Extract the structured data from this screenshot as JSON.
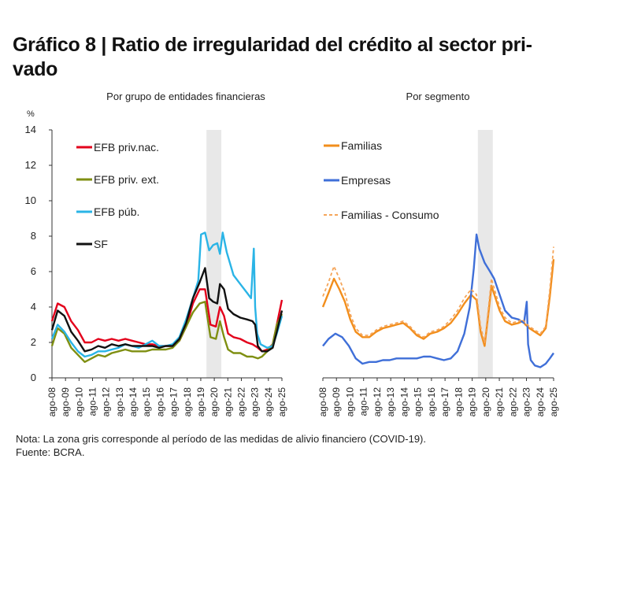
{
  "title": "Gráfico 8 | Ratio de irregularidad del crédito al sector pri-vado",
  "title_line1": "Gráfico 8 | Ratio de irregularidad del crédito al sector pri-",
  "title_line2": "vado",
  "note": "Nota: La zona gris corresponde al período de las medidas de alivio financiero (COVID-19).",
  "source": "Fuente: BCRA.",
  "chart_data": [
    {
      "type": "line",
      "title": "Por grupo de entidades financieras",
      "ylabel": "%",
      "ylim": [
        0,
        14
      ],
      "yticks": [
        0,
        2,
        4,
        6,
        8,
        10,
        12,
        14
      ],
      "xlim": [
        2008.58,
        2025.58
      ],
      "xtick_labels": [
        "ago-08",
        "ago-09",
        "ago-10",
        "ago-11",
        "ago-12",
        "ago-13",
        "ago-14",
        "ago-15",
        "ago-16",
        "ago-17",
        "ago-18",
        "ago-19",
        "ago-20",
        "ago-21",
        "ago-22",
        "ago-23",
        "ago-24",
        "ago-25"
      ],
      "shaded_region": [
        2020.0,
        2021.1
      ],
      "legend_position": "top-left",
      "series": [
        {
          "name": "EFB priv.nac.",
          "color": "#e3001b",
          "x": [
            2008.58,
            2009.0,
            2009.5,
            2010.0,
            2010.5,
            2011.0,
            2011.5,
            2012.0,
            2012.5,
            2013.0,
            2013.5,
            2014.0,
            2014.5,
            2015.0,
            2015.5,
            2016.0,
            2016.5,
            2017.0,
            2017.5,
            2018.0,
            2018.5,
            2019.0,
            2019.5,
            2019.9,
            2020.3,
            2020.7,
            2021.0,
            2021.3,
            2021.6,
            2022.0,
            2022.5,
            2023.0,
            2023.4,
            2023.8,
            2024.1,
            2024.5,
            2024.9,
            2025.2,
            2025.58
          ],
          "y": [
            3.2,
            4.2,
            4.0,
            3.2,
            2.7,
            2.0,
            2.0,
            2.2,
            2.1,
            2.2,
            2.1,
            2.2,
            2.1,
            2.0,
            1.9,
            1.9,
            1.8,
            1.8,
            1.8,
            2.1,
            2.9,
            4.2,
            5.0,
            5.0,
            3.0,
            2.9,
            4.0,
            3.5,
            2.5,
            2.3,
            2.2,
            2.0,
            1.9,
            1.7,
            1.5,
            1.6,
            1.9,
            3.0,
            4.4
          ]
        },
        {
          "name": "EFB priv. ext.",
          "color": "#7f8f12",
          "x": [
            2008.58,
            2009.0,
            2009.5,
            2010.0,
            2010.5,
            2011.0,
            2011.5,
            2012.0,
            2012.5,
            2013.0,
            2013.5,
            2014.0,
            2014.5,
            2015.0,
            2015.5,
            2016.0,
            2016.5,
            2017.0,
            2017.5,
            2018.0,
            2018.5,
            2019.0,
            2019.5,
            2019.9,
            2020.3,
            2020.7,
            2021.0,
            2021.3,
            2021.6,
            2022.0,
            2022.5,
            2023.0,
            2023.4,
            2023.8,
            2024.1,
            2024.5,
            2024.9,
            2025.2,
            2025.58
          ],
          "y": [
            1.8,
            2.8,
            2.5,
            1.7,
            1.3,
            0.9,
            1.1,
            1.3,
            1.2,
            1.4,
            1.5,
            1.6,
            1.5,
            1.5,
            1.5,
            1.6,
            1.6,
            1.6,
            1.7,
            2.1,
            2.9,
            3.7,
            4.2,
            4.3,
            2.3,
            2.2,
            3.2,
            2.3,
            1.6,
            1.4,
            1.4,
            1.2,
            1.2,
            1.1,
            1.2,
            1.5,
            1.9,
            3.0,
            3.6
          ]
        },
        {
          "name": "EFB púb.",
          "color": "#2ab4e6",
          "x": [
            2008.58,
            2009.0,
            2009.5,
            2010.0,
            2010.5,
            2011.0,
            2011.5,
            2012.0,
            2012.5,
            2013.0,
            2013.5,
            2014.0,
            2014.5,
            2015.0,
            2015.5,
            2016.0,
            2016.5,
            2017.0,
            2017.5,
            2018.0,
            2018.5,
            2019.0,
            2019.4,
            2019.6,
            2019.9,
            2020.2,
            2020.5,
            2020.8,
            2021.0,
            2021.2,
            2021.5,
            2022.0,
            2022.5,
            2023.0,
            2023.3,
            2023.5,
            2023.6,
            2023.75,
            2024.0,
            2024.5,
            2024.9,
            2025.2,
            2025.58
          ],
          "y": [
            2.2,
            3.0,
            2.6,
            2.0,
            1.5,
            1.2,
            1.3,
            1.5,
            1.5,
            1.6,
            1.7,
            1.9,
            1.8,
            1.7,
            1.9,
            2.1,
            1.8,
            1.8,
            1.9,
            2.3,
            3.3,
            4.5,
            5.5,
            8.1,
            8.2,
            7.2,
            7.5,
            7.6,
            7.0,
            8.2,
            7.1,
            5.8,
            5.3,
            4.8,
            4.5,
            7.3,
            4.0,
            2.5,
            1.9,
            1.7,
            1.8,
            2.5,
            3.5
          ]
        },
        {
          "name": "SF",
          "color": "#111111",
          "x": [
            2008.58,
            2009.0,
            2009.5,
            2010.0,
            2010.5,
            2011.0,
            2011.5,
            2012.0,
            2012.5,
            2013.0,
            2013.5,
            2014.0,
            2014.5,
            2015.0,
            2015.5,
            2016.0,
            2016.5,
            2017.0,
            2017.5,
            2018.0,
            2018.5,
            2019.0,
            2019.5,
            2019.9,
            2020.2,
            2020.5,
            2020.8,
            2021.0,
            2021.3,
            2021.6,
            2022.0,
            2022.5,
            2023.0,
            2023.4,
            2023.6,
            2023.8,
            2024.1,
            2024.5,
            2024.9,
            2025.2,
            2025.58
          ],
          "y": [
            2.7,
            3.8,
            3.5,
            2.6,
            2.1,
            1.5,
            1.6,
            1.8,
            1.7,
            1.9,
            1.8,
            1.9,
            1.8,
            1.8,
            1.8,
            1.8,
            1.7,
            1.8,
            1.8,
            2.2,
            3.1,
            4.5,
            5.4,
            6.2,
            4.5,
            4.3,
            4.2,
            5.3,
            5.0,
            3.9,
            3.6,
            3.4,
            3.3,
            3.2,
            3.0,
            1.8,
            1.5,
            1.5,
            1.7,
            2.6,
            3.8
          ]
        }
      ]
    },
    {
      "type": "line",
      "title": "Por segmento",
      "ylim": [
        0,
        14
      ],
      "xlim": [
        2008.58,
        2025.58
      ],
      "xtick_labels": [
        "ago-08",
        "ago-09",
        "ago-10",
        "ago-11",
        "ago-12",
        "ago-13",
        "ago-14",
        "ago-15",
        "ago-16",
        "ago-17",
        "ago-18",
        "ago-19",
        "ago-20",
        "ago-21",
        "ago-22",
        "ago-23",
        "ago-24",
        "ago-25"
      ],
      "shaded_region": [
        2020.0,
        2021.1
      ],
      "legend_position": "top-left",
      "series": [
        {
          "name": "Familias",
          "color": "#f28e1c",
          "style": "solid",
          "x": [
            2008.58,
            2009.0,
            2009.4,
            2009.8,
            2010.2,
            2010.6,
            2011.0,
            2011.5,
            2012.0,
            2012.5,
            2013.0,
            2013.5,
            2014.0,
            2014.5,
            2015.0,
            2015.5,
            2016.0,
            2016.5,
            2017.0,
            2017.5,
            2018.0,
            2018.5,
            2019.0,
            2019.5,
            2019.9,
            2020.2,
            2020.5,
            2020.8,
            2021.0,
            2021.3,
            2021.6,
            2022.0,
            2022.5,
            2023.0,
            2023.3,
            2023.5,
            2023.8,
            2024.2,
            2024.6,
            2025.0,
            2025.3,
            2025.58
          ],
          "y": [
            4.0,
            4.8,
            5.6,
            5.0,
            4.3,
            3.3,
            2.6,
            2.3,
            2.3,
            2.6,
            2.8,
            2.9,
            3.0,
            3.1,
            2.8,
            2.4,
            2.2,
            2.5,
            2.6,
            2.8,
            3.1,
            3.6,
            4.2,
            4.7,
            4.4,
            2.6,
            1.8,
            3.8,
            5.2,
            4.5,
            3.8,
            3.2,
            3.0,
            3.1,
            3.2,
            3.0,
            2.8,
            2.6,
            2.4,
            2.8,
            4.6,
            6.7
          ]
        },
        {
          "name": "Empresas",
          "color": "#3f6fd8",
          "style": "solid",
          "x": [
            2008.58,
            2009.0,
            2009.5,
            2010.0,
            2010.5,
            2011.0,
            2011.5,
            2012.0,
            2012.5,
            2013.0,
            2013.5,
            2014.0,
            2014.5,
            2015.0,
            2015.5,
            2016.0,
            2016.5,
            2017.0,
            2017.5,
            2018.0,
            2018.5,
            2019.0,
            2019.4,
            2019.7,
            2019.9,
            2020.1,
            2020.5,
            2020.9,
            2021.2,
            2021.6,
            2022.0,
            2022.5,
            2023.0,
            2023.4,
            2023.6,
            2023.7,
            2023.9,
            2024.2,
            2024.6,
            2025.0,
            2025.3,
            2025.58
          ],
          "y": [
            1.8,
            2.2,
            2.5,
            2.3,
            1.8,
            1.1,
            0.8,
            0.9,
            0.9,
            1.0,
            1.0,
            1.1,
            1.1,
            1.1,
            1.1,
            1.2,
            1.2,
            1.1,
            1.0,
            1.1,
            1.5,
            2.5,
            4.0,
            6.2,
            8.1,
            7.3,
            6.5,
            6.0,
            5.6,
            4.7,
            3.8,
            3.4,
            3.3,
            3.1,
            4.3,
            1.9,
            1.0,
            0.7,
            0.6,
            0.8,
            1.1,
            1.4
          ]
        },
        {
          "name": "Familias - Consumo",
          "color": "#f5a55a",
          "style": "dashed",
          "x": [
            2008.58,
            2009.0,
            2009.4,
            2009.8,
            2010.2,
            2010.6,
            2011.0,
            2011.5,
            2012.0,
            2012.5,
            2013.0,
            2013.5,
            2014.0,
            2014.5,
            2015.0,
            2015.5,
            2016.0,
            2016.5,
            2017.0,
            2017.5,
            2018.0,
            2018.5,
            2019.0,
            2019.5,
            2019.9,
            2020.2,
            2020.5,
            2020.8,
            2021.0,
            2021.3,
            2021.6,
            2022.0,
            2022.5,
            2023.0,
            2023.3,
            2023.5,
            2023.8,
            2024.2,
            2024.6,
            2025.0,
            2025.3,
            2025.58
          ],
          "y": [
            4.6,
            5.4,
            6.3,
            5.6,
            4.8,
            3.6,
            2.8,
            2.4,
            2.4,
            2.7,
            2.9,
            3.0,
            3.1,
            3.2,
            2.9,
            2.5,
            2.3,
            2.6,
            2.7,
            2.9,
            3.3,
            3.8,
            4.5,
            5.0,
            4.7,
            2.9,
            2.0,
            4.1,
            5.6,
            4.8,
            4.0,
            3.4,
            3.1,
            3.2,
            3.3,
            3.1,
            2.9,
            2.7,
            2.5,
            2.9,
            5.0,
            7.4
          ]
        }
      ]
    }
  ],
  "panels": [
    {
      "title": "Por grupo de entidades financieras",
      "ylabel": "%",
      "yticks": [
        "0",
        "2",
        "4",
        "6",
        "8",
        "10",
        "12",
        "14"
      ]
    },
    {
      "title": "Por segmento"
    }
  ]
}
